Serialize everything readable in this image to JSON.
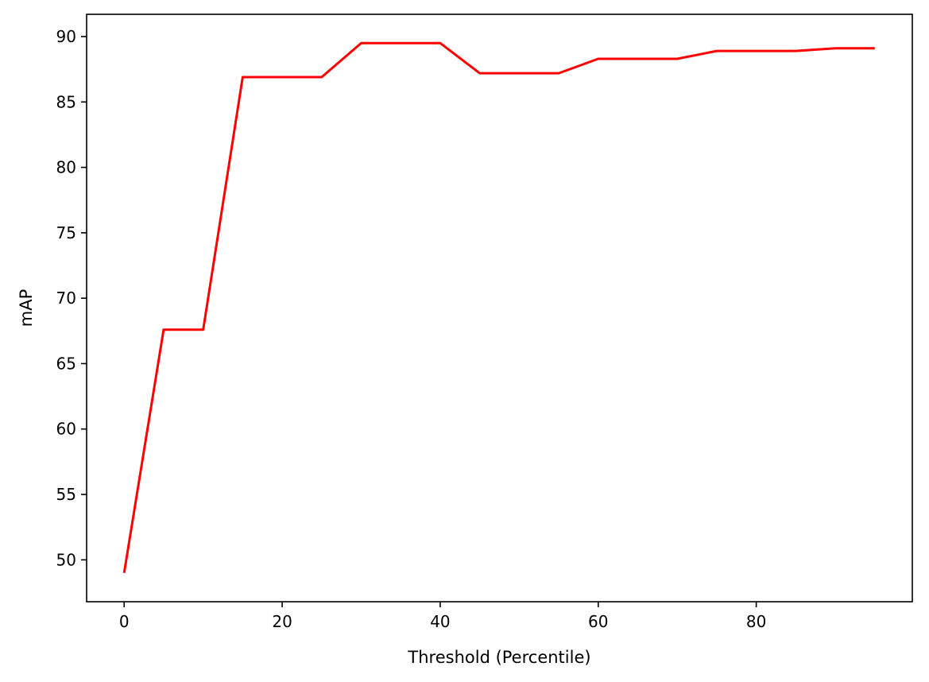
{
  "chart_data": {
    "type": "line",
    "title": "",
    "xlabel": "Threshold (Percentile)",
    "ylabel": "mAP",
    "xlim": [
      -4.75,
      99.75
    ],
    "ylim": [
      46.8,
      91.7
    ],
    "xticks": [
      0,
      20,
      40,
      60,
      80
    ],
    "yticks": [
      50,
      55,
      60,
      65,
      70,
      75,
      80,
      85,
      90
    ],
    "grid": false,
    "legend": "none",
    "series": [
      {
        "color": "#ff0000",
        "x": [
          0,
          5,
          10,
          15,
          20,
          25,
          30,
          35,
          40,
          45,
          50,
          55,
          60,
          65,
          70,
          75,
          80,
          85,
          90,
          95
        ],
        "y": [
          49.0,
          67.6,
          67.6,
          86.9,
          86.9,
          86.9,
          89.5,
          89.5,
          89.5,
          87.2,
          87.2,
          87.2,
          88.3,
          88.3,
          88.3,
          88.9,
          88.9,
          88.9,
          89.1,
          89.1
        ]
      }
    ]
  }
}
